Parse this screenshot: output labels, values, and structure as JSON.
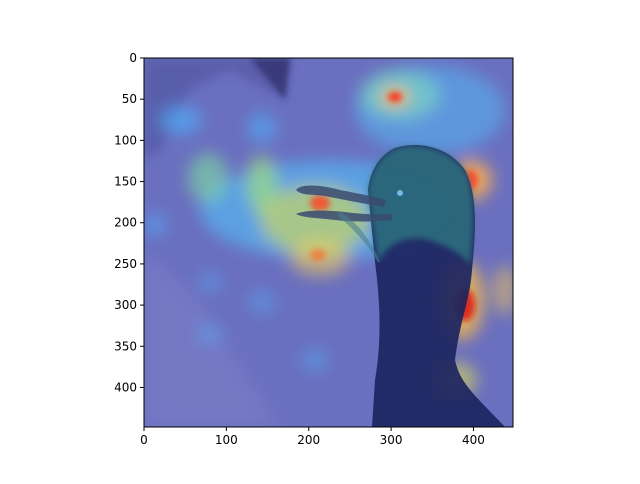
{
  "figure": {
    "description_free": true
  },
  "axes": {
    "x_ticks": [
      "0",
      "100",
      "200",
      "300",
      "400"
    ],
    "y_ticks": [
      "0",
      "50",
      "100",
      "150",
      "200",
      "250",
      "300",
      "350",
      "400"
    ],
    "x_tick_values": [
      0,
      100,
      200,
      300,
      400
    ],
    "y_tick_values": [
      0,
      50,
      100,
      150,
      200,
      250,
      300,
      350,
      400
    ],
    "xlim": [
      0,
      448
    ],
    "ylim": [
      0,
      448
    ]
  },
  "colormap": "jet",
  "colors": {
    "background": "#6b6fc7",
    "low": "#2a2ad0",
    "mid": "#4fd0ff",
    "high_yellow": "#ffd84a",
    "high_red": "#e0202a",
    "bird_body": "#1c235a",
    "bird_head": "#2e6f80"
  }
}
